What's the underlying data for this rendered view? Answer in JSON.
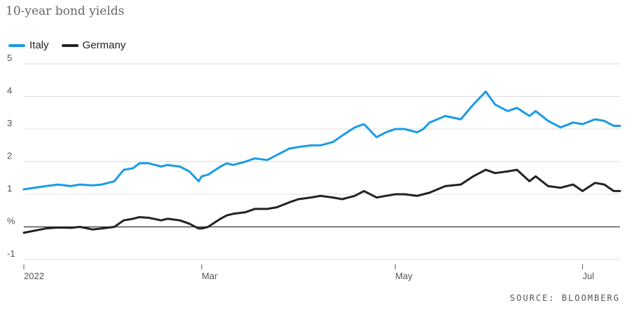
{
  "chart_data": {
    "type": "line",
    "title": "10-year bond yields",
    "source": "SOURCE: BLOOMBERG",
    "y_unit_label": "%",
    "y_ticks": [
      5,
      4,
      3,
      2,
      1,
      0,
      -1
    ],
    "y_tick_labels": [
      "5",
      "4",
      "3",
      "2",
      "1",
      "%",
      "-1"
    ],
    "ylim": [
      -1,
      5
    ],
    "x_ticks": [
      "2022-01-03",
      "2022-03-01",
      "2022-05-02",
      "2022-07-01"
    ],
    "x_tick_labels": [
      "2022",
      "Mar",
      "May",
      "Jul"
    ],
    "xlim": [
      "2022-01-03",
      "2022-07-13"
    ],
    "grid": true,
    "legend": "top-left",
    "series": [
      {
        "name": "Italy",
        "color": "#1a9be6",
        "x": [
          "2022-01-03",
          "2022-01-10",
          "2022-01-14",
          "2022-01-18",
          "2022-01-21",
          "2022-01-25",
          "2022-01-28",
          "2022-02-01",
          "2022-02-04",
          "2022-02-07",
          "2022-02-09",
          "2022-02-12",
          "2022-02-16",
          "2022-02-18",
          "2022-02-22",
          "2022-02-25",
          "2022-02-28",
          "2022-03-01",
          "2022-03-03",
          "2022-03-07",
          "2022-03-09",
          "2022-03-11",
          "2022-03-15",
          "2022-03-18",
          "2022-03-22",
          "2022-03-25",
          "2022-03-29",
          "2022-04-01",
          "2022-04-05",
          "2022-04-08",
          "2022-04-12",
          "2022-04-15",
          "2022-04-19",
          "2022-04-22",
          "2022-04-26",
          "2022-04-29",
          "2022-05-02",
          "2022-05-05",
          "2022-05-09",
          "2022-05-11",
          "2022-05-13",
          "2022-05-18",
          "2022-05-23",
          "2022-05-27",
          "2022-05-31",
          "2022-06-03",
          "2022-06-07",
          "2022-06-10",
          "2022-06-14",
          "2022-06-16",
          "2022-06-20",
          "2022-06-24",
          "2022-06-28",
          "2022-07-01",
          "2022-07-05",
          "2022-07-08",
          "2022-07-11",
          "2022-07-13"
        ],
        "y": [
          1.15,
          1.25,
          1.3,
          1.25,
          1.3,
          1.27,
          1.3,
          1.4,
          1.75,
          1.8,
          1.95,
          1.95,
          1.85,
          1.9,
          1.85,
          1.7,
          1.4,
          1.55,
          1.6,
          1.85,
          1.95,
          1.9,
          2.0,
          2.1,
          2.05,
          2.2,
          2.4,
          2.45,
          2.5,
          2.5,
          2.6,
          2.8,
          3.05,
          3.15,
          2.75,
          2.9,
          3.0,
          3.0,
          2.9,
          3.0,
          3.2,
          3.4,
          3.3,
          3.75,
          4.15,
          3.75,
          3.55,
          3.65,
          3.4,
          3.55,
          3.25,
          3.05,
          3.2,
          3.15,
          3.3,
          3.25,
          3.1,
          3.1
        ]
      },
      {
        "name": "Germany",
        "color": "#222222",
        "x": [
          "2022-01-03",
          "2022-01-10",
          "2022-01-14",
          "2022-01-18",
          "2022-01-21",
          "2022-01-25",
          "2022-01-28",
          "2022-02-01",
          "2022-02-04",
          "2022-02-07",
          "2022-02-09",
          "2022-02-12",
          "2022-02-16",
          "2022-02-18",
          "2022-02-22",
          "2022-02-25",
          "2022-02-28",
          "2022-03-01",
          "2022-03-03",
          "2022-03-07",
          "2022-03-09",
          "2022-03-11",
          "2022-03-15",
          "2022-03-18",
          "2022-03-22",
          "2022-03-25",
          "2022-03-29",
          "2022-04-01",
          "2022-04-05",
          "2022-04-08",
          "2022-04-12",
          "2022-04-15",
          "2022-04-19",
          "2022-04-22",
          "2022-04-26",
          "2022-04-29",
          "2022-05-02",
          "2022-05-05",
          "2022-05-09",
          "2022-05-11",
          "2022-05-13",
          "2022-05-18",
          "2022-05-23",
          "2022-05-27",
          "2022-05-31",
          "2022-06-03",
          "2022-06-07",
          "2022-06-10",
          "2022-06-14",
          "2022-06-16",
          "2022-06-20",
          "2022-06-24",
          "2022-06-28",
          "2022-07-01",
          "2022-07-05",
          "2022-07-08",
          "2022-07-11",
          "2022-07-13"
        ],
        "y": [
          -0.18,
          -0.05,
          -0.02,
          -0.03,
          0.0,
          -0.08,
          -0.05,
          0.0,
          0.2,
          0.25,
          0.3,
          0.28,
          0.2,
          0.25,
          0.2,
          0.1,
          -0.05,
          -0.05,
          0.0,
          0.25,
          0.35,
          0.4,
          0.45,
          0.55,
          0.55,
          0.6,
          0.75,
          0.85,
          0.9,
          0.95,
          0.9,
          0.85,
          0.95,
          1.1,
          0.9,
          0.95,
          1.0,
          1.0,
          0.95,
          1.0,
          1.05,
          1.25,
          1.3,
          1.55,
          1.75,
          1.65,
          1.7,
          1.75,
          1.4,
          1.55,
          1.25,
          1.2,
          1.3,
          1.1,
          1.35,
          1.3,
          1.1,
          1.1
        ]
      }
    ]
  }
}
